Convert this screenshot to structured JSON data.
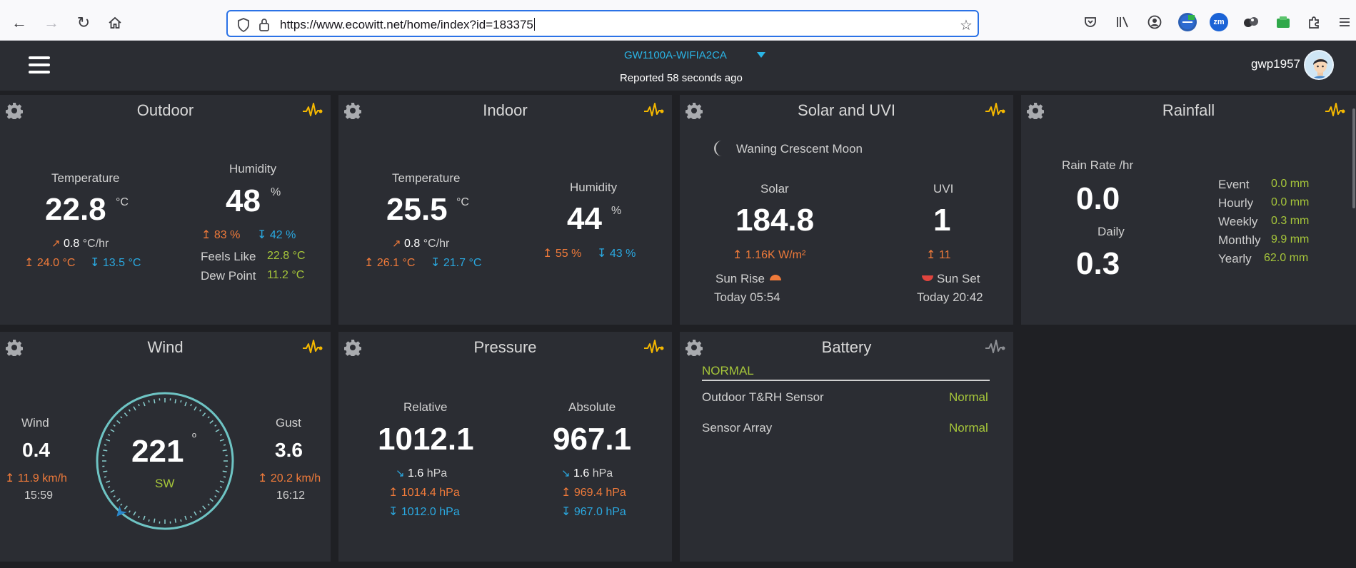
{
  "browser": {
    "url": "https://www.ecowitt.net/home/index?id=183375"
  },
  "header": {
    "device": "GW1100A-WIFIA2CA",
    "reported": "Reported 58 seconds ago",
    "username": "gwp1957"
  },
  "outdoor": {
    "title": "Outdoor",
    "temp_label": "Temperature",
    "temp": "22.8",
    "temp_unit": "°C",
    "temp_rate": "0.8",
    "temp_rate_unit": "°C/hr",
    "temp_high": "24.0 °C",
    "temp_low": "13.5 °C",
    "hum_label": "Humidity",
    "hum": "48",
    "hum_unit": "%",
    "hum_high": "83 %",
    "hum_low": "42 %",
    "feels_label": "Feels Like",
    "feels": "22.8 °C",
    "dew_label": "Dew Point",
    "dew": "11.2 °C"
  },
  "indoor": {
    "title": "Indoor",
    "temp_label": "Temperature",
    "temp": "25.5",
    "temp_unit": "°C",
    "temp_rate": "0.8",
    "temp_rate_unit": "°C/hr",
    "temp_high": "26.1 °C",
    "temp_low": "21.7 °C",
    "hum_label": "Humidity",
    "hum": "44",
    "hum_unit": "%",
    "hum_high": "55 %",
    "hum_low": "43 %"
  },
  "solar": {
    "title": "Solar and UVI",
    "moon": "Waning Crescent Moon",
    "solar_label": "Solar",
    "solar": "184.8",
    "solar_high": "1.16K W/m²",
    "uvi_label": "UVI",
    "uvi": "1",
    "uvi_high": "11",
    "sunrise_label": "Sun Rise",
    "sunrise": "Today 05:54",
    "sunset_label": "Sun Set",
    "sunset": "Today 20:42"
  },
  "rain": {
    "title": "Rainfall",
    "rate_label": "Rain Rate /hr",
    "rate": "0.0",
    "daily_label": "Daily",
    "daily": "0.3",
    "rows": [
      {
        "label": "Event",
        "value": "0.0 mm"
      },
      {
        "label": "Hourly",
        "value": "0.0 mm"
      },
      {
        "label": "Weekly",
        "value": "0.3 mm"
      },
      {
        "label": "Monthly",
        "value": "9.9 mm"
      },
      {
        "label": "Yearly",
        "value": "62.0 mm"
      }
    ]
  },
  "wind": {
    "title": "Wind",
    "wind_label": "Wind",
    "wind": "0.4",
    "wind_high": "11.9 km/h",
    "wind_time": "15:59",
    "direction": "221",
    "direction_unit": "º",
    "direction_name": "SW",
    "gust_label": "Gust",
    "gust": "3.6",
    "gust_high": "20.2 km/h",
    "gust_time": "16:12"
  },
  "pressure": {
    "title": "Pressure",
    "rel_label": "Relative",
    "rel": "1012.1",
    "rel_rate": "1.6",
    "rel_rate_unit": "hPa",
    "rel_high": "1014.4 hPa",
    "rel_low": "1012.0 hPa",
    "abs_label": "Absolute",
    "abs": "967.1",
    "abs_rate": "1.6",
    "abs_rate_unit": "hPa",
    "abs_high": "969.4 hPa",
    "abs_low": "967.0 hPa"
  },
  "battery": {
    "title": "Battery",
    "status": "NORMAL",
    "rows": [
      {
        "label": "Outdoor T&RH Sensor",
        "value": "Normal"
      },
      {
        "label": "Sensor Array",
        "value": "Normal"
      }
    ]
  },
  "colors": {
    "accent_blue": "#2ab5e6",
    "high": "#ef7a3a",
    "low": "#2aa8e0",
    "green": "#a6c63a",
    "chart_icon": "#f5b800"
  },
  "icons": [
    "back-arrow-icon",
    "forward-arrow-icon",
    "reload-icon",
    "home-icon",
    "shield-icon",
    "lock-icon",
    "star-icon",
    "pocket-icon",
    "library-icon",
    "account-icon",
    "gear-icon",
    "pulse-chart-icon",
    "moon-icon",
    "sunrise-icon",
    "sunset-icon",
    "wind-arrow-icon"
  ]
}
